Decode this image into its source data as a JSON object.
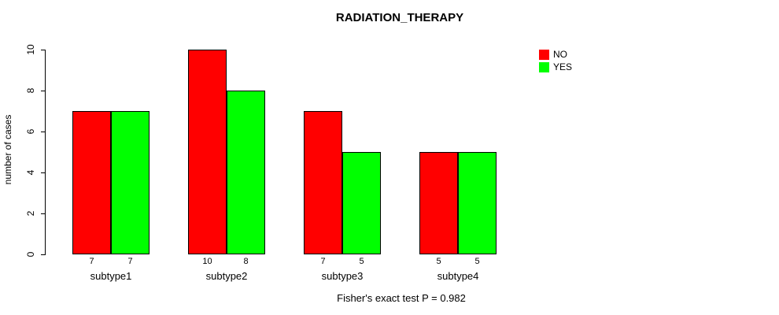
{
  "chart_data": {
    "type": "bar",
    "title": "RADIATION_THERAPY",
    "xlabel": "",
    "ylabel": "number of cases",
    "categories": [
      "subtype1",
      "subtype2",
      "subtype3",
      "subtype4"
    ],
    "series": [
      {
        "name": "NO",
        "color": "#ff0000",
        "values": [
          7,
          10,
          7,
          5
        ]
      },
      {
        "name": "YES",
        "color": "#00ff00",
        "values": [
          7,
          8,
          5,
          5
        ]
      }
    ],
    "bar_value_labels": [
      [
        "7",
        "7"
      ],
      [
        "10",
        "8"
      ],
      [
        "7",
        "5"
      ],
      [
        "5",
        "5"
      ]
    ],
    "yticks": [
      0,
      2,
      4,
      6,
      8,
      10
    ],
    "ylim": [
      0,
      10
    ],
    "grid": false,
    "legend_position": "top-right",
    "caption": "Fisher's exact test P = 0.982"
  }
}
